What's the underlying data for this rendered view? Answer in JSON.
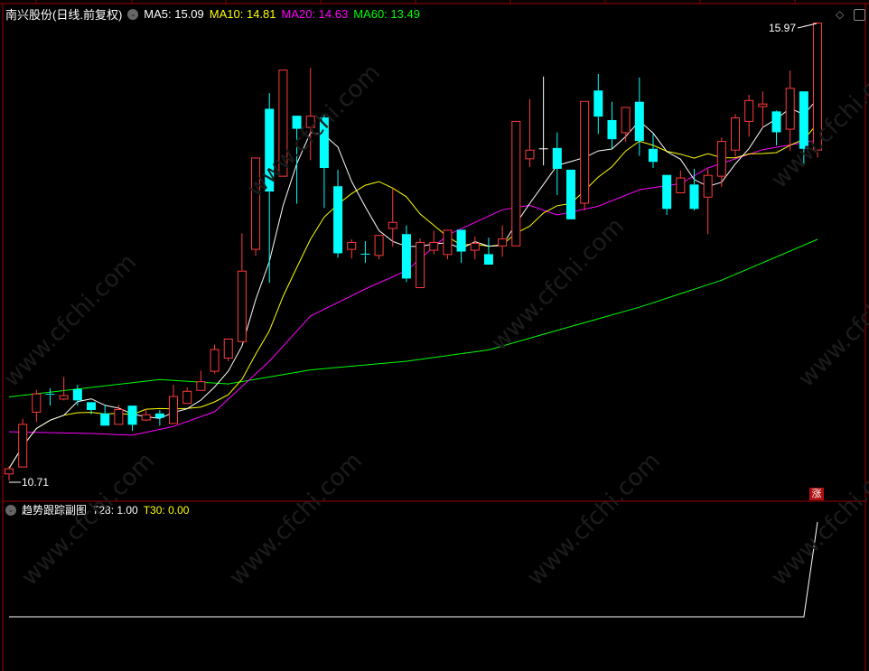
{
  "header": {
    "title": "南兴股份(日线.前复权)",
    "ma5_label": "MA5: 15.09",
    "ma10_label": "MA10: 14.81",
    "ma20_label": "MA20: 14.63",
    "ma60_label": "MA60: 13.49"
  },
  "subchart": {
    "title": "趋势跟踪副图",
    "t28_label": "T28: 1.00",
    "t30_label": "T30: 0.00"
  },
  "badge": "涨",
  "watermark": "www.cfchi.com",
  "icons": [
    "diamond-icon",
    "panel-toggle-icon",
    "chevron-down-icon"
  ],
  "colors": {
    "up": "#ff3c3c",
    "down": "#00ffff",
    "flat": "#ffffff",
    "ma5": "#ffffff",
    "ma10": "#ffff00",
    "ma20": "#ff00ff",
    "ma60": "#00ff00",
    "border": "#a00000"
  },
  "chart_data": [
    {
      "type": "candlestick",
      "high_label": "15.97",
      "low_label": "10.71",
      "ohlc": [
        [
          10.78,
          10.87,
          10.71,
          10.85
        ],
        [
          10.86,
          11.42,
          10.86,
          11.36
        ],
        [
          11.49,
          11.75,
          11.38,
          11.71
        ],
        [
          11.7,
          11.77,
          11.57,
          11.69
        ],
        [
          11.64,
          11.9,
          11.63,
          11.69
        ],
        [
          11.76,
          11.81,
          11.57,
          11.63
        ],
        [
          11.61,
          11.61,
          11.47,
          11.52
        ],
        [
          11.48,
          11.58,
          11.34,
          11.34
        ],
        [
          11.35,
          11.58,
          11.35,
          11.53
        ],
        [
          11.57,
          11.57,
          11.28,
          11.35
        ],
        [
          11.4,
          11.53,
          11.39,
          11.47
        ],
        [
          11.48,
          11.52,
          11.34,
          11.43
        ],
        [
          11.36,
          11.81,
          11.36,
          11.68
        ],
        [
          11.59,
          11.78,
          11.59,
          11.74
        ],
        [
          11.74,
          11.97,
          11.74,
          11.85
        ],
        [
          11.96,
          12.27,
          11.94,
          12.22
        ],
        [
          12.11,
          12.34,
          12.08,
          12.34
        ],
        [
          12.3,
          13.55,
          12.3,
          13.12
        ],
        [
          13.36,
          14.42,
          13.29,
          14.42
        ],
        [
          14.98,
          15.16,
          12.98,
          14.03
        ],
        [
          14.2,
          15.43,
          14.2,
          15.43
        ],
        [
          14.9,
          14.9,
          13.89,
          14.75
        ],
        [
          14.76,
          15.45,
          14.39,
          14.9
        ],
        [
          14.88,
          14.91,
          13.84,
          14.3
        ],
        [
          14.09,
          14.28,
          13.27,
          13.32
        ],
        [
          13.36,
          13.48,
          13.26,
          13.45
        ],
        [
          13.31,
          13.46,
          13.21,
          13.3
        ],
        [
          13.29,
          13.53,
          13.25,
          13.53
        ],
        [
          13.6,
          14.06,
          13.4,
          13.68
        ],
        [
          13.54,
          13.64,
          12.99,
          13.03
        ],
        [
          12.92,
          13.49,
          12.92,
          13.45
        ],
        [
          13.35,
          13.58,
          13.31,
          13.45
        ],
        [
          13.3,
          13.59,
          13.25,
          13.59
        ],
        [
          13.59,
          13.59,
          13.21,
          13.34
        ],
        [
          13.35,
          13.51,
          13.25,
          13.44
        ],
        [
          13.31,
          13.5,
          13.19,
          13.19
        ],
        [
          13.4,
          13.64,
          13.28,
          13.49
        ],
        [
          13.4,
          14.84,
          13.4,
          14.84
        ],
        [
          14.4,
          15.09,
          14.31,
          14.51
        ],
        [
          14.52,
          15.35,
          14.33,
          14.52
        ],
        [
          14.53,
          14.71,
          13.99,
          14.29
        ],
        [
          14.28,
          14.28,
          13.71,
          13.71
        ],
        [
          13.89,
          15.07,
          13.81,
          15.07
        ],
        [
          15.19,
          15.38,
          14.69,
          14.89
        ],
        [
          14.85,
          15.06,
          14.52,
          14.63
        ],
        [
          14.7,
          15.0,
          14.6,
          15.0
        ],
        [
          15.06,
          15.34,
          14.44,
          14.61
        ],
        [
          14.52,
          14.69,
          14.3,
          14.37
        ],
        [
          14.22,
          14.22,
          13.76,
          13.83
        ],
        [
          14.01,
          14.27,
          14.01,
          14.19
        ],
        [
          14.11,
          14.29,
          13.81,
          13.83
        ],
        [
          13.96,
          14.29,
          13.54,
          14.22
        ],
        [
          14.2,
          14.65,
          14.08,
          14.61
        ],
        [
          14.5,
          14.92,
          14.43,
          14.88
        ],
        [
          14.83,
          15.14,
          14.66,
          15.08
        ],
        [
          15.0,
          15.18,
          14.76,
          15.04
        ],
        [
          14.95,
          14.96,
          14.56,
          14.71
        ],
        [
          14.74,
          15.42,
          14.5,
          15.22
        ],
        [
          15.18,
          15.18,
          14.33,
          14.52
        ],
        [
          14.5,
          15.97,
          14.42,
          15.97
        ]
      ],
      "ohlc_order": [
        "open",
        "high",
        "low",
        "close"
      ],
      "ma20_points": [
        [
          1,
          11.27
        ],
        [
          7,
          11.25
        ],
        [
          10,
          11.23
        ],
        [
          13,
          11.33
        ],
        [
          16,
          11.5
        ],
        [
          20,
          12.08
        ],
        [
          23,
          12.6
        ],
        [
          27,
          12.91
        ],
        [
          30,
          13.12
        ],
        [
          33,
          13.53
        ],
        [
          37,
          13.82
        ],
        [
          39,
          13.87
        ],
        [
          41,
          13.76
        ],
        [
          44,
          13.86
        ],
        [
          47,
          14.05
        ],
        [
          50,
          14.12
        ],
        [
          52,
          14.3
        ],
        [
          56,
          14.51
        ],
        [
          60,
          14.62
        ]
      ],
      "ma60_points": [
        [
          1,
          11.67
        ],
        [
          12,
          11.87
        ],
        [
          17,
          11.82
        ],
        [
          23,
          11.98
        ],
        [
          30,
          12.08
        ],
        [
          36,
          12.21
        ],
        [
          40,
          12.39
        ],
        [
          47,
          12.7
        ],
        [
          53,
          13.01
        ],
        [
          60,
          13.48
        ]
      ]
    },
    {
      "type": "line",
      "name": "T28",
      "values": [
        0,
        0,
        0,
        0,
        0,
        0,
        0,
        0,
        0,
        0,
        0,
        0,
        0,
        0,
        0,
        0,
        0,
        0,
        0,
        0,
        0,
        0,
        0,
        0,
        0,
        0,
        0,
        0,
        0,
        0,
        0,
        0,
        0,
        0,
        0,
        0,
        0,
        0,
        0,
        0,
        0,
        0,
        0,
        0,
        0,
        0,
        0,
        0,
        0,
        0,
        0,
        0,
        0,
        0,
        0,
        0,
        0,
        0,
        0,
        1
      ]
    }
  ]
}
